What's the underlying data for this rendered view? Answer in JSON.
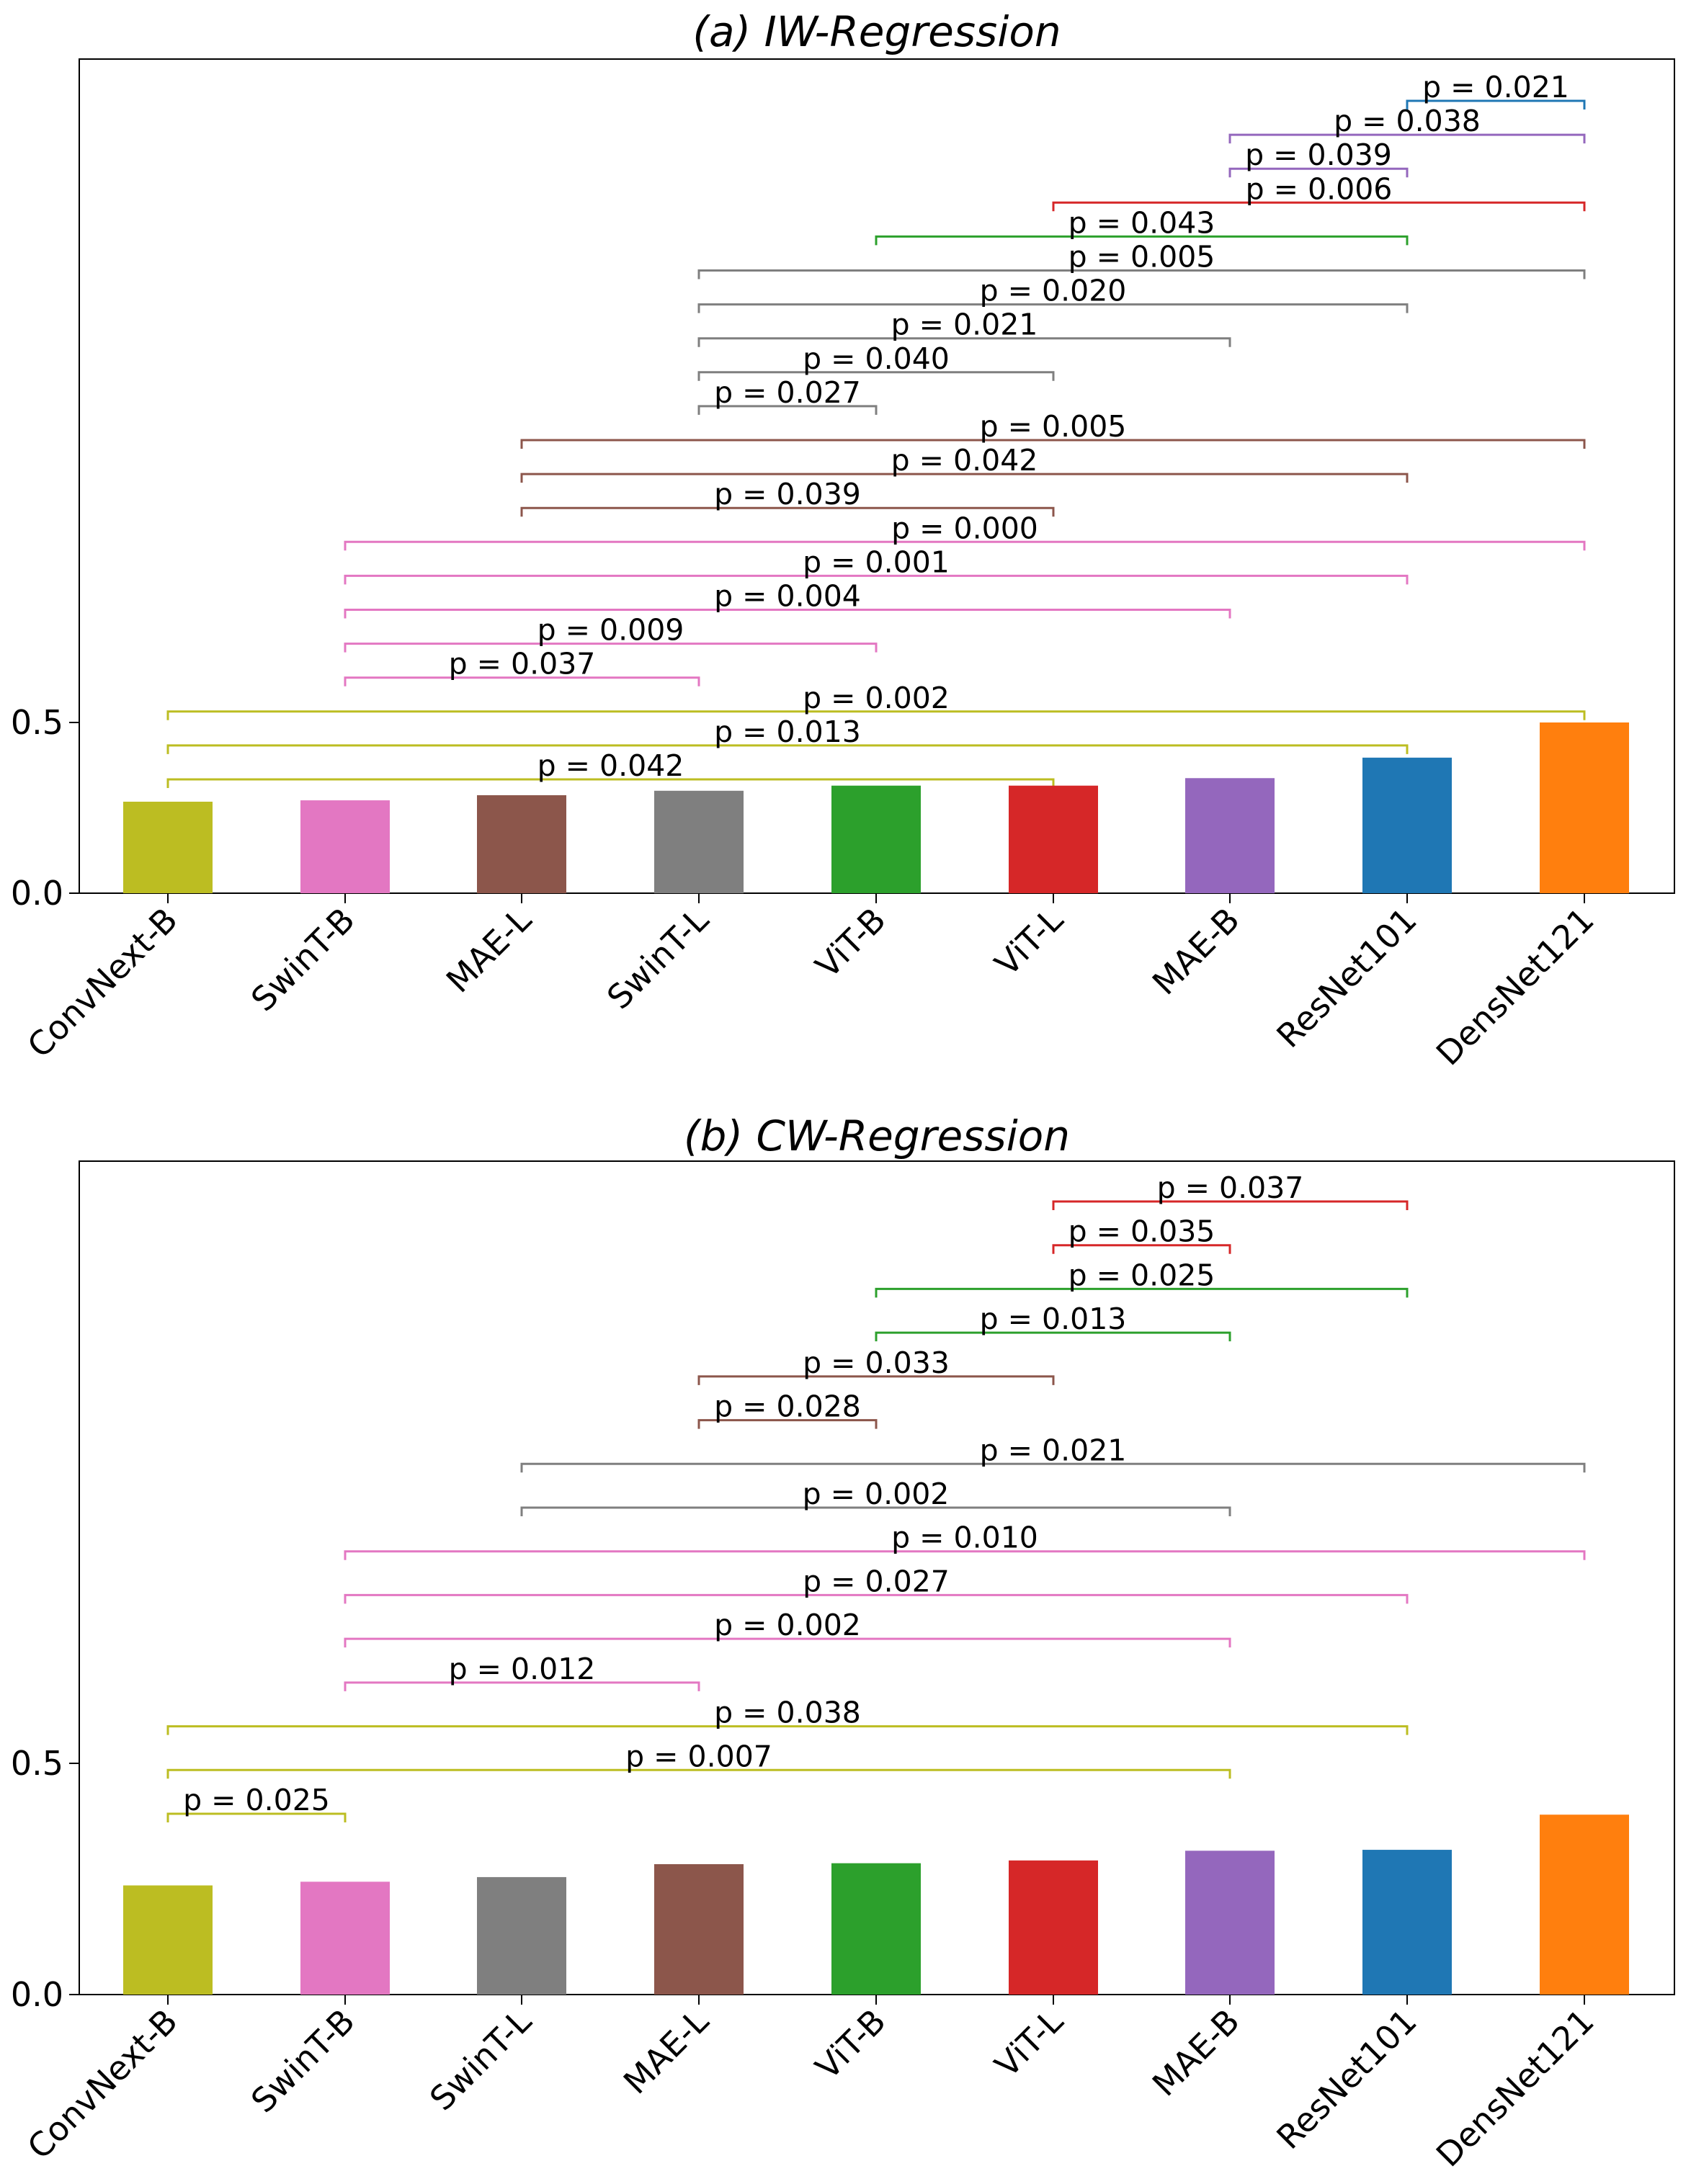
{
  "chart_data": [
    {
      "type": "bar",
      "title": "(a) IW-Regression",
      "xlabel": "",
      "ylabel": "",
      "y_ticks": [
        "0.0",
        "0.5"
      ],
      "categories": [
        "ConvNext-B",
        "SwinT-B",
        "MAE-L",
        "SwinT-L",
        "ViT-B",
        "ViT-L",
        "MAE-B",
        "ResNet101",
        "DensNet121"
      ],
      "values": [
        0.268,
        0.272,
        0.287,
        0.3,
        0.315,
        0.315,
        0.337,
        0.397,
        0.5
      ],
      "colors": [
        "#bcbd22",
        "#e377c2",
        "#8c564b",
        "#7f7f7f",
        "#2ca02c",
        "#d62728",
        "#9467bd",
        "#1f77b4",
        "#ff7f0e"
      ],
      "significance": [
        {
          "from": 0,
          "to": 5,
          "label": "p = 0.042",
          "color": "#bcbd22"
        },
        {
          "from": 0,
          "to": 7,
          "label": "p = 0.013",
          "color": "#bcbd22"
        },
        {
          "from": 0,
          "to": 8,
          "label": "p = 0.002",
          "color": "#bcbd22"
        },
        {
          "from": 1,
          "to": 3,
          "label": "p = 0.037",
          "color": "#e377c2"
        },
        {
          "from": 1,
          "to": 4,
          "label": "p = 0.009",
          "color": "#e377c2"
        },
        {
          "from": 1,
          "to": 6,
          "label": "p = 0.004",
          "color": "#e377c2"
        },
        {
          "from": 1,
          "to": 7,
          "label": "p = 0.001",
          "color": "#e377c2"
        },
        {
          "from": 1,
          "to": 8,
          "label": "p = 0.000",
          "color": "#e377c2"
        },
        {
          "from": 2,
          "to": 5,
          "label": "p = 0.039",
          "color": "#8c564b"
        },
        {
          "from": 2,
          "to": 7,
          "label": "p = 0.042",
          "color": "#8c564b"
        },
        {
          "from": 2,
          "to": 8,
          "label": "p = 0.005",
          "color": "#8c564b"
        },
        {
          "from": 3,
          "to": 4,
          "label": "p = 0.027",
          "color": "#7f7f7f"
        },
        {
          "from": 3,
          "to": 5,
          "label": "p = 0.040",
          "color": "#7f7f7f"
        },
        {
          "from": 3,
          "to": 6,
          "label": "p = 0.021",
          "color": "#7f7f7f"
        },
        {
          "from": 3,
          "to": 7,
          "label": "p = 0.020",
          "color": "#7f7f7f"
        },
        {
          "from": 3,
          "to": 8,
          "label": "p = 0.005",
          "color": "#7f7f7f"
        },
        {
          "from": 4,
          "to": 7,
          "label": "p = 0.043",
          "color": "#2ca02c"
        },
        {
          "from": 5,
          "to": 8,
          "label": "p = 0.006",
          "color": "#d62728"
        },
        {
          "from": 6,
          "to": 7,
          "label": "p = 0.039",
          "color": "#9467bd"
        },
        {
          "from": 6,
          "to": 8,
          "label": "p = 0.038",
          "color": "#9467bd"
        },
        {
          "from": 7,
          "to": 8,
          "label": "p = 0.021",
          "color": "#1f77b4"
        }
      ]
    },
    {
      "type": "bar",
      "title": "(b) CW-Regression",
      "xlabel": "",
      "ylabel": "",
      "y_ticks": [
        "0.0",
        "0.5"
      ],
      "categories": [
        "ConvNext-B",
        "SwinT-B",
        "SwinT-L",
        "MAE-L",
        "ViT-B",
        "ViT-L",
        "MAE-B",
        "ResNet101",
        "DensNet121"
      ],
      "values": [
        0.236,
        0.244,
        0.254,
        0.282,
        0.284,
        0.29,
        0.311,
        0.313,
        0.389
      ],
      "colors": [
        "#bcbd22",
        "#e377c2",
        "#7f7f7f",
        "#8c564b",
        "#2ca02c",
        "#d62728",
        "#9467bd",
        "#1f77b4",
        "#ff7f0e"
      ],
      "significance": [
        {
          "from": 0,
          "to": 1,
          "label": "p = 0.025",
          "color": "#bcbd22"
        },
        {
          "from": 0,
          "to": 6,
          "label": "p = 0.007",
          "color": "#bcbd22"
        },
        {
          "from": 0,
          "to": 7,
          "label": "p = 0.038",
          "color": "#bcbd22"
        },
        {
          "from": 1,
          "to": 3,
          "label": "p = 0.012",
          "color": "#e377c2"
        },
        {
          "from": 1,
          "to": 6,
          "label": "p = 0.002",
          "color": "#e377c2"
        },
        {
          "from": 1,
          "to": 7,
          "label": "p = 0.027",
          "color": "#e377c2"
        },
        {
          "from": 1,
          "to": 8,
          "label": "p = 0.010",
          "color": "#e377c2"
        },
        {
          "from": 2,
          "to": 6,
          "label": "p = 0.002",
          "color": "#7f7f7f"
        },
        {
          "from": 2,
          "to": 8,
          "label": "p = 0.021",
          "color": "#7f7f7f"
        },
        {
          "from": 3,
          "to": 4,
          "label": "p = 0.028",
          "color": "#8c564b"
        },
        {
          "from": 3,
          "to": 5,
          "label": "p = 0.033",
          "color": "#8c564b"
        },
        {
          "from": 4,
          "to": 6,
          "label": "p = 0.013",
          "color": "#2ca02c"
        },
        {
          "from": 4,
          "to": 7,
          "label": "p = 0.025",
          "color": "#2ca02c"
        },
        {
          "from": 5,
          "to": 6,
          "label": "p = 0.035",
          "color": "#d62728"
        },
        {
          "from": 5,
          "to": 7,
          "label": "p = 0.037",
          "color": "#d62728"
        }
      ]
    }
  ]
}
